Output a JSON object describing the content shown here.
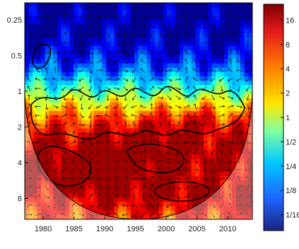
{
  "chart_data": {
    "type": "heatmap",
    "title": "",
    "xlabel": "",
    "ylabel": "",
    "x_ticks": [
      "1980",
      "1985",
      "1990",
      "1995",
      "2000",
      "2005",
      "2010"
    ],
    "x_tick_values": [
      1980,
      1985,
      1990,
      1995,
      2000,
      2005,
      2010
    ],
    "xlim": [
      1977,
      2014
    ],
    "y_ticks": [
      "0.25",
      "0.5",
      "1",
      "2",
      "4",
      "8"
    ],
    "y_tick_values": [
      0.25,
      0.5,
      1,
      2,
      4,
      8
    ],
    "ylim": [
      0.18,
      12
    ],
    "y_scale": "log2",
    "y_direction": "period increases downward",
    "colorbar_ticks": [
      "16",
      "8",
      "4",
      "2",
      "1",
      "1/2",
      "1/4",
      "1/8",
      "1/16"
    ],
    "colorbar_values": [
      16,
      8,
      4,
      2,
      1,
      0.5,
      0.25,
      0.125,
      0.0625
    ],
    "colorscale": "jet",
    "features": {
      "cone_of_influence": "shaded outside a U-shaped curve",
      "significance_contours": "black contours",
      "phase_arrows": "small black arrows across the field"
    },
    "colors": {
      "low": "#1f2a8a",
      "mid": "#f2e33a",
      "high": "#8a0f15",
      "contour": "#000000"
    }
  }
}
